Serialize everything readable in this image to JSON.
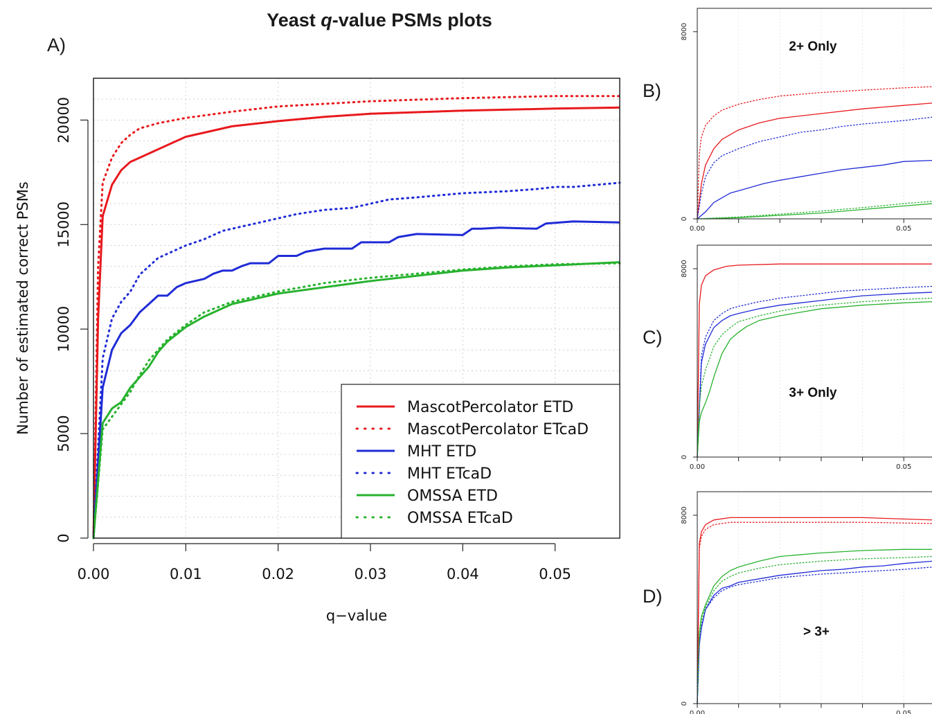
{
  "figure": {
    "title_main": "Yeast ",
    "title_q": "q",
    "title_rest": "-value PSMs plots",
    "panel_labels": [
      "A)",
      "B)",
      "C)",
      "D)"
    ]
  },
  "colors": {
    "red": "#e8191d",
    "blue": "#1f2bd6",
    "green": "#27b22e",
    "grid": "#cfcfcf"
  },
  "chart_data": [
    {
      "panel": "A)",
      "type": "line",
      "xlabel": "q−value",
      "ylabel": "Number of estimated correct PSMs",
      "xlim": [
        0,
        0.057
      ],
      "ylim": [
        0,
        22000
      ],
      "xticks": [
        0.0,
        0.01,
        0.02,
        0.03,
        0.04,
        0.05
      ],
      "xtick_labels": [
        "0.00",
        "0.01",
        "0.02",
        "0.03",
        "0.04",
        "0.05"
      ],
      "yticks": [
        0,
        5000,
        10000,
        15000,
        20000
      ],
      "ytick_labels": [
        "0",
        "5000",
        "10000",
        "15000",
        "20000"
      ],
      "grid": true,
      "legend_position": "bottom-right",
      "series": [
        {
          "name": "MascotPercolator ETD",
          "color": "red",
          "style": "solid",
          "x": [
            0,
            0.0005,
            0.001,
            0.002,
            0.003,
            0.004,
            0.005,
            0.007,
            0.01,
            0.012,
            0.015,
            0.02,
            0.025,
            0.03,
            0.04,
            0.05,
            0.057
          ],
          "y": [
            0,
            10500,
            15400,
            16900,
            17600,
            18000,
            18200,
            18600,
            19200,
            19400,
            19700,
            19950,
            20150,
            20300,
            20450,
            20550,
            20600
          ]
        },
        {
          "name": "MascotPercolator ETcaD",
          "color": "red",
          "style": "dotted",
          "x": [
            0,
            0.0005,
            0.001,
            0.002,
            0.003,
            0.004,
            0.005,
            0.007,
            0.01,
            0.015,
            0.02,
            0.03,
            0.04,
            0.05,
            0.057
          ],
          "y": [
            0,
            13000,
            17000,
            18200,
            18900,
            19300,
            19600,
            19850,
            20100,
            20400,
            20650,
            20900,
            21050,
            21150,
            21150
          ]
        },
        {
          "name": "MHT ETD",
          "color": "blue",
          "style": "solid",
          "x": [
            0,
            0.001,
            0.002,
            0.003,
            0.004,
            0.005,
            0.006,
            0.007,
            0.008,
            0.009,
            0.01,
            0.012,
            0.013,
            0.014,
            0.015,
            0.016,
            0.017,
            0.019,
            0.02,
            0.022,
            0.023,
            0.025,
            0.028,
            0.029,
            0.032,
            0.033,
            0.035,
            0.04,
            0.041,
            0.042,
            0.044,
            0.048,
            0.049,
            0.052,
            0.057
          ],
          "y": [
            0,
            7200,
            9000,
            9800,
            10200,
            10800,
            11200,
            11600,
            11600,
            12000,
            12200,
            12400,
            12650,
            12800,
            12800,
            13000,
            13150,
            13150,
            13500,
            13500,
            13700,
            13850,
            13850,
            14150,
            14150,
            14400,
            14550,
            14500,
            14800,
            14800,
            14850,
            14800,
            15050,
            15150,
            15100
          ]
        },
        {
          "name": "MHT ETcaD",
          "color": "blue",
          "style": "dotted",
          "x": [
            0,
            0.001,
            0.002,
            0.003,
            0.004,
            0.005,
            0.006,
            0.007,
            0.008,
            0.01,
            0.012,
            0.014,
            0.016,
            0.018,
            0.02,
            0.022,
            0.025,
            0.028,
            0.03,
            0.032,
            0.035,
            0.04,
            0.045,
            0.048,
            0.05,
            0.052,
            0.057
          ],
          "y": [
            0,
            8600,
            10500,
            11300,
            11800,
            12600,
            13000,
            13400,
            13600,
            14000,
            14300,
            14700,
            14900,
            15100,
            15300,
            15500,
            15700,
            15800,
            16000,
            16200,
            16300,
            16500,
            16600,
            16700,
            16800,
            16800,
            17000
          ]
        },
        {
          "name": "OMSSA ETD",
          "color": "green",
          "style": "solid",
          "x": [
            0,
            0.001,
            0.002,
            0.003,
            0.004,
            0.005,
            0.006,
            0.007,
            0.008,
            0.01,
            0.012,
            0.015,
            0.02,
            0.025,
            0.03,
            0.035,
            0.04,
            0.045,
            0.05,
            0.057
          ],
          "y": [
            0,
            5500,
            6200,
            6500,
            7200,
            7700,
            8200,
            8900,
            9400,
            10100,
            10600,
            11200,
            11700,
            12000,
            12300,
            12550,
            12800,
            12950,
            13050,
            13200
          ]
        },
        {
          "name": "OMSSA ETcaD",
          "color": "green",
          "style": "dotted",
          "x": [
            0,
            0.001,
            0.002,
            0.003,
            0.004,
            0.005,
            0.006,
            0.007,
            0.008,
            0.01,
            0.012,
            0.015,
            0.02,
            0.025,
            0.03,
            0.035,
            0.04,
            0.045,
            0.05,
            0.057
          ],
          "y": [
            0,
            5200,
            5800,
            6400,
            7000,
            7800,
            8500,
            9000,
            9500,
            10200,
            10800,
            11300,
            11800,
            12200,
            12450,
            12650,
            12850,
            13000,
            13100,
            13150
          ]
        }
      ]
    },
    {
      "panel": "B)",
      "type": "line",
      "annotation": "2+ Only",
      "xlim": [
        0,
        0.057
      ],
      "ylim": [
        0,
        9000
      ],
      "xtick_labels": [
        "0.00",
        "0.05"
      ],
      "ytick_labels": [
        "0",
        "8000"
      ],
      "series": [
        {
          "color": "red",
          "style": "solid",
          "x": [
            0,
            0.001,
            0.002,
            0.004,
            0.006,
            0.01,
            0.015,
            0.02,
            0.03,
            0.04,
            0.05,
            0.057
          ],
          "y": [
            0,
            1500,
            2300,
            3000,
            3400,
            3800,
            4100,
            4300,
            4500,
            4700,
            4850,
            4950
          ]
        },
        {
          "color": "red",
          "style": "dotted",
          "x": [
            0,
            0.0005,
            0.001,
            0.002,
            0.004,
            0.006,
            0.01,
            0.015,
            0.02,
            0.03,
            0.04,
            0.05,
            0.057
          ],
          "y": [
            0,
            2800,
            3500,
            4000,
            4400,
            4650,
            4900,
            5100,
            5250,
            5400,
            5500,
            5600,
            5650
          ]
        },
        {
          "color": "blue",
          "style": "solid",
          "x": [
            0,
            0.002,
            0.004,
            0.006,
            0.008,
            0.01,
            0.013,
            0.016,
            0.02,
            0.025,
            0.03,
            0.035,
            0.04,
            0.045,
            0.05,
            0.057
          ],
          "y": [
            0,
            300,
            700,
            900,
            1100,
            1200,
            1350,
            1500,
            1650,
            1800,
            1950,
            2100,
            2200,
            2300,
            2450,
            2500
          ]
        },
        {
          "color": "blue",
          "style": "dotted",
          "x": [
            0,
            0.001,
            0.002,
            0.004,
            0.006,
            0.01,
            0.015,
            0.02,
            0.025,
            0.03,
            0.035,
            0.04,
            0.05,
            0.057
          ],
          "y": [
            0,
            1100,
            1800,
            2400,
            2700,
            3000,
            3300,
            3500,
            3700,
            3800,
            3950,
            4050,
            4200,
            4350
          ]
        },
        {
          "color": "green",
          "style": "solid",
          "x": [
            0,
            0.01,
            0.02,
            0.03,
            0.04,
            0.05,
            0.057
          ],
          "y": [
            0,
            50,
            150,
            250,
            400,
            550,
            650
          ]
        },
        {
          "color": "green",
          "style": "dotted",
          "x": [
            0,
            0.01,
            0.02,
            0.03,
            0.04,
            0.05,
            0.057
          ],
          "y": [
            0,
            80,
            200,
            330,
            480,
            650,
            750
          ]
        }
      ]
    },
    {
      "panel": "C)",
      "type": "line",
      "annotation": "3+ Only",
      "xlim": [
        0,
        0.057
      ],
      "ylim": [
        0,
        9000
      ],
      "xtick_labels": [
        "0.00",
        "0.05"
      ],
      "ytick_labels": [
        "0",
        "8000"
      ],
      "series": [
        {
          "color": "red",
          "style": "solid",
          "x": [
            0,
            0.0005,
            0.001,
            0.002,
            0.004,
            0.007,
            0.01,
            0.02,
            0.03,
            0.04,
            0.05,
            0.057
          ],
          "y": [
            0,
            6500,
            7300,
            7700,
            7950,
            8100,
            8150,
            8200,
            8200,
            8200,
            8200,
            8200
          ]
        },
        {
          "color": "blue",
          "style": "solid",
          "x": [
            0,
            0.001,
            0.002,
            0.004,
            0.006,
            0.008,
            0.01,
            0.015,
            0.02,
            0.025,
            0.03,
            0.035,
            0.04,
            0.045,
            0.05,
            0.057
          ],
          "y": [
            0,
            4000,
            4800,
            5500,
            5800,
            6000,
            6100,
            6300,
            6450,
            6550,
            6650,
            6750,
            6850,
            6900,
            6950,
            7000
          ]
        },
        {
          "color": "blue",
          "style": "dotted",
          "x": [
            0,
            0.001,
            0.002,
            0.004,
            0.006,
            0.008,
            0.01,
            0.015,
            0.02,
            0.025,
            0.03,
            0.035,
            0.04,
            0.05,
            0.057
          ],
          "y": [
            0,
            4300,
            5100,
            5800,
            6100,
            6300,
            6400,
            6600,
            6750,
            6850,
            6950,
            7050,
            7100,
            7200,
            7250
          ]
        },
        {
          "color": "green",
          "style": "solid",
          "x": [
            0,
            0.0005,
            0.001,
            0.002,
            0.003,
            0.004,
            0.005,
            0.006,
            0.008,
            0.01,
            0.012,
            0.015,
            0.02,
            0.025,
            0.03,
            0.04,
            0.05,
            0.057
          ],
          "y": [
            0,
            1500,
            1900,
            2300,
            2800,
            3400,
            3900,
            4400,
            5000,
            5300,
            5550,
            5800,
            6000,
            6150,
            6300,
            6450,
            6550,
            6600
          ]
        },
        {
          "color": "green",
          "style": "dotted",
          "x": [
            0,
            0.0005,
            0.001,
            0.002,
            0.003,
            0.004,
            0.006,
            0.008,
            0.01,
            0.015,
            0.02,
            0.025,
            0.03,
            0.04,
            0.05,
            0.057
          ],
          "y": [
            0,
            2200,
            3000,
            3700,
            4200,
            4700,
            5200,
            5500,
            5750,
            6000,
            6200,
            6350,
            6450,
            6600,
            6700,
            6750
          ]
        }
      ]
    },
    {
      "panel": "D)",
      "type": "line",
      "annotation": "> 3+",
      "xlim": [
        0,
        0.057
      ],
      "ylim": [
        0,
        9000
      ],
      "xtick_labels": [
        "0.00",
        "0.05"
      ],
      "ytick_labels": [
        "0",
        "8000"
      ],
      "series": [
        {
          "color": "red",
          "style": "solid",
          "x": [
            0,
            0.0005,
            0.001,
            0.002,
            0.004,
            0.008,
            0.015,
            0.025,
            0.04,
            0.057
          ],
          "y": [
            0,
            6800,
            7300,
            7600,
            7800,
            7900,
            7900,
            7900,
            7900,
            7800
          ]
        },
        {
          "color": "red",
          "style": "dotted",
          "x": [
            0,
            0.0005,
            0.001,
            0.002,
            0.004,
            0.008,
            0.015,
            0.025,
            0.04,
            0.057
          ],
          "y": [
            0,
            6600,
            7100,
            7400,
            7600,
            7700,
            7700,
            7700,
            7700,
            7650
          ]
        },
        {
          "color": "green",
          "style": "solid",
          "x": [
            0,
            0.0005,
            0.001,
            0.002,
            0.004,
            0.006,
            0.008,
            0.01,
            0.015,
            0.02,
            0.03,
            0.04,
            0.05,
            0.057
          ],
          "y": [
            0,
            3000,
            3700,
            4200,
            5000,
            5400,
            5650,
            5800,
            6050,
            6250,
            6400,
            6500,
            6550,
            6550
          ]
        },
        {
          "color": "blue",
          "style": "solid",
          "x": [
            0,
            0.0005,
            0.001,
            0.002,
            0.004,
            0.006,
            0.008,
            0.01,
            0.015,
            0.02,
            0.025,
            0.03,
            0.035,
            0.04,
            0.045,
            0.05,
            0.057
          ],
          "y": [
            0,
            2500,
            3200,
            4000,
            4600,
            4900,
            5000,
            5150,
            5300,
            5450,
            5550,
            5650,
            5700,
            5800,
            5850,
            5950,
            6050
          ]
        },
        {
          "color": "blue",
          "style": "dotted",
          "x": [
            0,
            0.0005,
            0.001,
            0.002,
            0.004,
            0.006,
            0.008,
            0.01,
            0.015,
            0.02,
            0.03,
            0.04,
            0.05,
            0.057
          ],
          "y": [
            0,
            2600,
            3300,
            4000,
            4500,
            4800,
            4950,
            5050,
            5200,
            5350,
            5500,
            5600,
            5700,
            5800
          ]
        },
        {
          "color": "green",
          "style": "dotted",
          "x": [
            0,
            0.0005,
            0.001,
            0.002,
            0.004,
            0.006,
            0.008,
            0.01,
            0.015,
            0.02,
            0.03,
            0.04,
            0.05,
            0.057
          ],
          "y": [
            0,
            2800,
            3500,
            4100,
            4800,
            5200,
            5400,
            5550,
            5750,
            5900,
            6050,
            6150,
            6200,
            6250
          ]
        }
      ]
    }
  ]
}
